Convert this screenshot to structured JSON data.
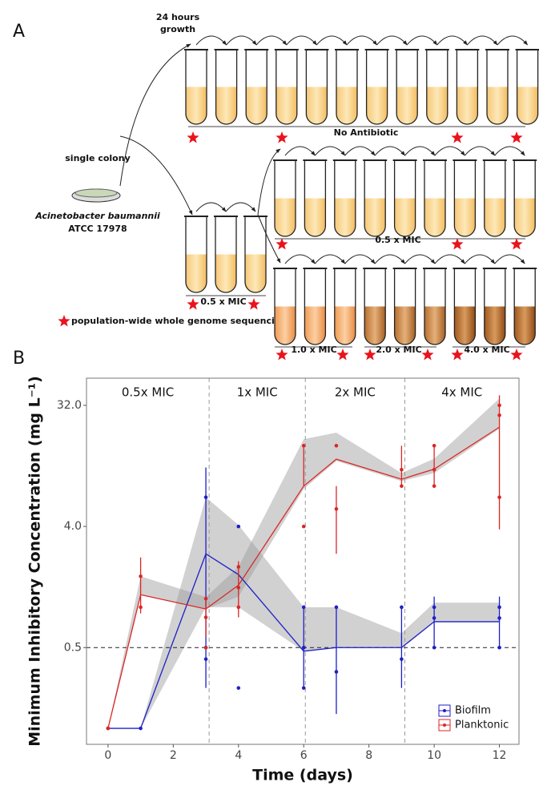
{
  "panel_a": {
    "letter": "A",
    "growth_label": [
      "24 hours",
      "growth"
    ],
    "colony_label": "single colony",
    "strain": {
      "species": "Acinetobacter baumannii",
      "strain_id": "ATCC 17978"
    },
    "rows": {
      "no_antibiotic": "No Antibiotic",
      "half_mic_start": "0.5 x MIC",
      "half_mic": "0.5 x MIC",
      "one_mic": "1.0 x MIC",
      "two_mic": "2.0 x MIC",
      "four_mic": "4.0 x MIC"
    },
    "legend": "population-wide whole genome sequencing"
  },
  "chart_data": {
    "type": "line",
    "panel_label": "B",
    "xlabel": "Time (days)",
    "ylabel": "Minimum Inhibitory Concentration (mg L⁻¹)",
    "x": [
      0,
      1,
      3,
      4,
      6,
      7,
      9,
      10,
      12
    ],
    "xlim": [
      -0.66,
      12.6
    ],
    "xticks": [
      0,
      2,
      4,
      6,
      8,
      10,
      12
    ],
    "ylim": [
      0.095,
      51
    ],
    "log_scale": true,
    "yticks": [
      0.5,
      {
        "value": 4,
        "label": "4.0"
      },
      {
        "value": 32,
        "label": "32.0"
      }
    ],
    "vlines": [
      3.1,
      6.05,
      9.1
    ],
    "hline": 0.5,
    "region_labels": [
      "0.5x MIC",
      "1x MIC",
      "2x MIC",
      "4x MIC"
    ],
    "legend_position": "bottom right",
    "series": [
      {
        "name": "Biofilm",
        "color": "#1f1fc8",
        "values": [
          0.125,
          0.125,
          2.5,
          1.75,
          0.47,
          0.5,
          0.5,
          0.78,
          0.78
        ],
        "ribbon_low": [
          0.125,
          0.125,
          1.0,
          1.0,
          0.47,
          0.5,
          0.5,
          0.78,
          0.78
        ],
        "ribbon_high": [
          0.125,
          0.125,
          6.6,
          4.1,
          1.0,
          1.0,
          0.64,
          1.08,
          1.08
        ],
        "error_low": [
          null,
          null,
          0.25,
          null,
          0.25,
          0.16,
          0.25,
          0.5,
          0.5
        ],
        "error_high": [
          null,
          null,
          11,
          null,
          1,
          1,
          1,
          1.2,
          1.2
        ],
        "point_x": [
          0,
          1,
          3,
          3,
          3,
          4,
          4,
          6,
          6,
          6,
          7,
          7,
          9,
          9,
          10,
          10,
          10,
          12,
          12,
          12
        ],
        "point_y": [
          0.125,
          0.125,
          6.6,
          0.5,
          0.41,
          4,
          0.25,
          1,
          0.5,
          0.25,
          1,
          0.33,
          1,
          0.41,
          1,
          0.83,
          0.5,
          1,
          0.83,
          0.5
        ]
      },
      {
        "name": "Planktonic",
        "color": "#dc2626",
        "values": [
          0.125,
          1.24,
          0.97,
          1.46,
          8,
          12.7,
          9,
          10.7,
          22
        ],
        "ribbon_low": [
          0.125,
          1.24,
          0.97,
          1.2,
          7.6,
          12.3,
          8.7,
          10,
          21.4
        ],
        "ribbon_high": [
          0.125,
          1.7,
          1.19,
          2,
          17.9,
          20,
          10,
          12.8,
          36
        ],
        "error_low": [
          null,
          0.9,
          0.6,
          0.84,
          8,
          2.5,
          8,
          8,
          3.8
        ],
        "error_high": [
          null,
          2.35,
          1.2,
          2.2,
          16,
          8,
          16,
          16,
          38
        ],
        "point_x": [
          0,
          1,
          1,
          3,
          3,
          3,
          4,
          4,
          4,
          6,
          6,
          7,
          7,
          9,
          9,
          10,
          10,
          10,
          12,
          12,
          12
        ],
        "point_y": [
          0.125,
          1.7,
          1.0,
          1.16,
          0.84,
          0.5,
          2,
          1.4,
          1,
          16,
          4,
          16,
          5.4,
          10.6,
          8,
          16,
          10.6,
          8,
          32,
          27,
          6.6
        ]
      }
    ]
  }
}
